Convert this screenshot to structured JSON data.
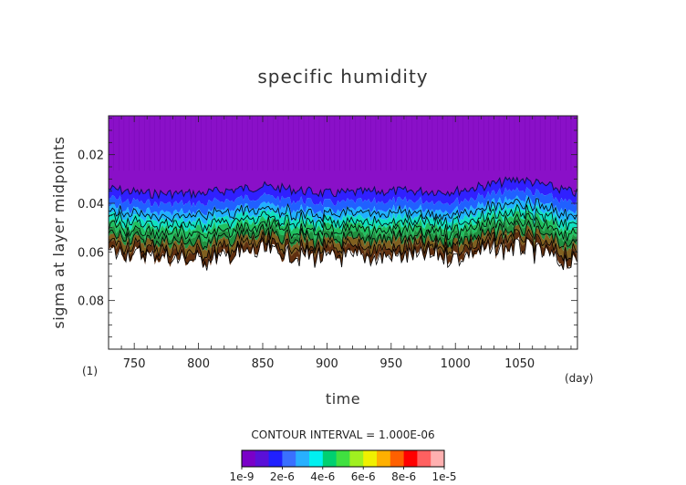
{
  "chart_data": {
    "type": "heatmap",
    "title": "specific humidity",
    "xlabel": "time",
    "ylabel": "sigma at layer midpoints",
    "x_unit": "(day)",
    "y_unit": "(1)",
    "xlim": [
      730,
      1095
    ],
    "ylim": [
      0.1,
      0.004
    ],
    "x_ticks": [
      750,
      800,
      850,
      900,
      950,
      1000,
      1050
    ],
    "y_ticks": [
      0.02,
      0.04,
      0.06,
      0.08
    ],
    "x_tick_labels": [
      "750",
      "800",
      "850",
      "900",
      "950",
      "1000",
      "1050"
    ],
    "y_tick_labels": [
      "0.02",
      "0.04",
      "0.06",
      "0.08"
    ],
    "contour_interval_text": "CONTOUR INTERVAL = 1.000E-06",
    "colorbar": {
      "colors": [
        "#7a00c8",
        "#5a10d8",
        "#2020ff",
        "#3a70ff",
        "#28b0ff",
        "#00f0f0",
        "#00d070",
        "#40e040",
        "#a0f020",
        "#f0f000",
        "#ffb000",
        "#ff6000",
        "#ff0000",
        "#ff6060",
        "#ffb0b0"
      ],
      "labels": [
        "1e-9",
        "2e-6",
        "4e-6",
        "6e-6",
        "8e-6",
        "1e-5"
      ]
    },
    "moist_boundary_sigma": [
      {
        "day": 730,
        "top": 0.034,
        "bottom": 0.058
      },
      {
        "day": 760,
        "top": 0.036,
        "bottom": 0.06
      },
      {
        "day": 800,
        "top": 0.036,
        "bottom": 0.062
      },
      {
        "day": 850,
        "top": 0.033,
        "bottom": 0.058
      },
      {
        "day": 900,
        "top": 0.036,
        "bottom": 0.061
      },
      {
        "day": 950,
        "top": 0.035,
        "bottom": 0.06
      },
      {
        "day": 1000,
        "top": 0.035,
        "bottom": 0.06
      },
      {
        "day": 1050,
        "top": 0.03,
        "bottom": 0.056
      },
      {
        "day": 1095,
        "top": 0.036,
        "bottom": 0.064
      }
    ]
  }
}
